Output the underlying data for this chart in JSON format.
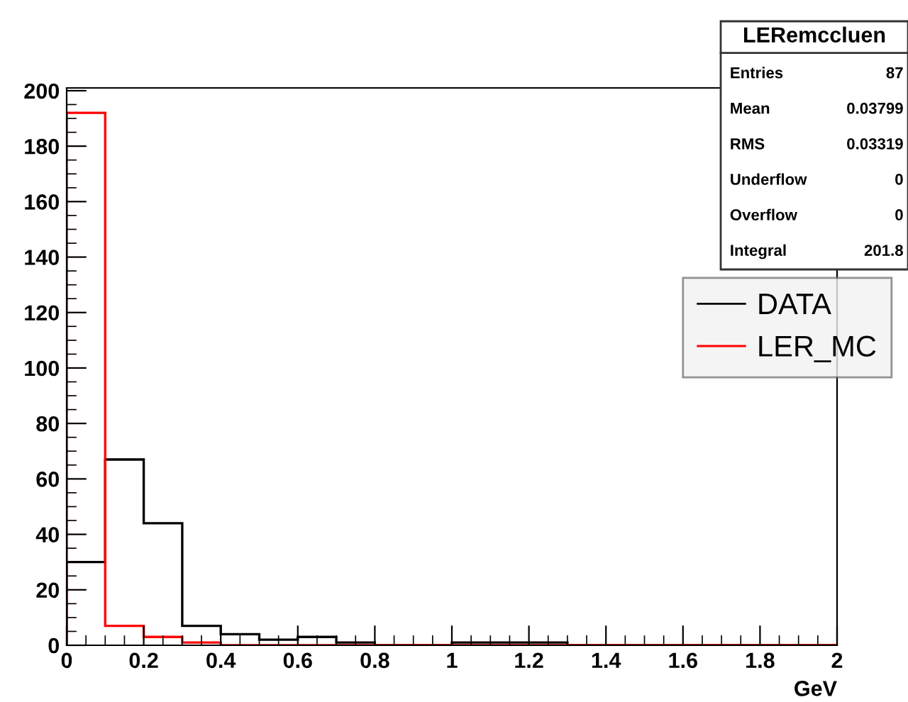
{
  "chart_data": {
    "type": "histogram",
    "xlabel": "GeV",
    "bins": [
      0,
      0.1,
      0.2,
      0.3,
      0.4,
      0.5,
      0.6,
      0.7,
      0.8,
      0.9,
      1.0,
      1.1,
      1.2,
      1.3,
      1.4,
      1.5,
      1.6,
      1.7,
      1.8,
      1.9,
      2.0
    ],
    "series": [
      {
        "name": "DATA",
        "color": "#000000",
        "values": [
          30,
          67,
          44,
          7,
          4,
          2,
          3,
          1,
          0,
          0,
          1,
          1,
          1,
          0,
          0,
          0,
          0,
          0,
          0,
          0
        ]
      },
      {
        "name": "LER_MC",
        "color": "#ff0000",
        "values": [
          192,
          7,
          3,
          1,
          0,
          0,
          0,
          0,
          0,
          0,
          0,
          0,
          0,
          0,
          0,
          0,
          0,
          0,
          0,
          0
        ]
      }
    ],
    "xlim": [
      0,
      2
    ],
    "xticks": [
      0,
      0.2,
      0.4,
      0.6,
      0.8,
      1,
      1.2,
      1.4,
      1.6,
      1.8,
      2
    ],
    "ylim": [
      0,
      201
    ],
    "yticks": [
      0,
      20,
      40,
      60,
      80,
      100,
      120,
      140,
      160,
      180,
      200
    ],
    "grid": false,
    "legend": "right",
    "annotations": [
      "LERemccluen",
      "Entries",
      "87",
      "Mean",
      "0.03799",
      "RMS",
      "0.03319",
      "Underflow",
      "0",
      "Overflow",
      "0",
      "Integral",
      "201.8"
    ]
  }
}
